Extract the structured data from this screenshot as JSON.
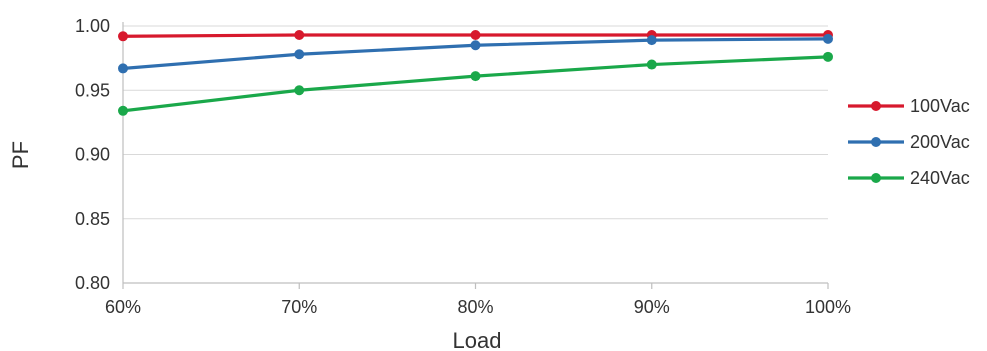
{
  "chart_data": {
    "type": "line",
    "title": "",
    "xlabel": "Load",
    "ylabel": "PF",
    "categories": [
      "60%",
      "70%",
      "80%",
      "90%",
      "100%"
    ],
    "ylim": [
      0.8,
      1.0
    ],
    "yticks": [
      "0.80",
      "0.85",
      "0.90",
      "0.95",
      "1.00"
    ],
    "grid": true,
    "legend_position": "right",
    "series": [
      {
        "name": "100Vac",
        "color": "#d7192d",
        "values": [
          0.992,
          0.993,
          0.993,
          0.993,
          0.993
        ]
      },
      {
        "name": "200Vac",
        "color": "#2f6fb0",
        "values": [
          0.967,
          0.978,
          0.985,
          0.989,
          0.99
        ]
      },
      {
        "name": "240Vac",
        "color": "#1aa84a",
        "values": [
          0.934,
          0.95,
          0.961,
          0.97,
          0.976
        ]
      }
    ]
  }
}
